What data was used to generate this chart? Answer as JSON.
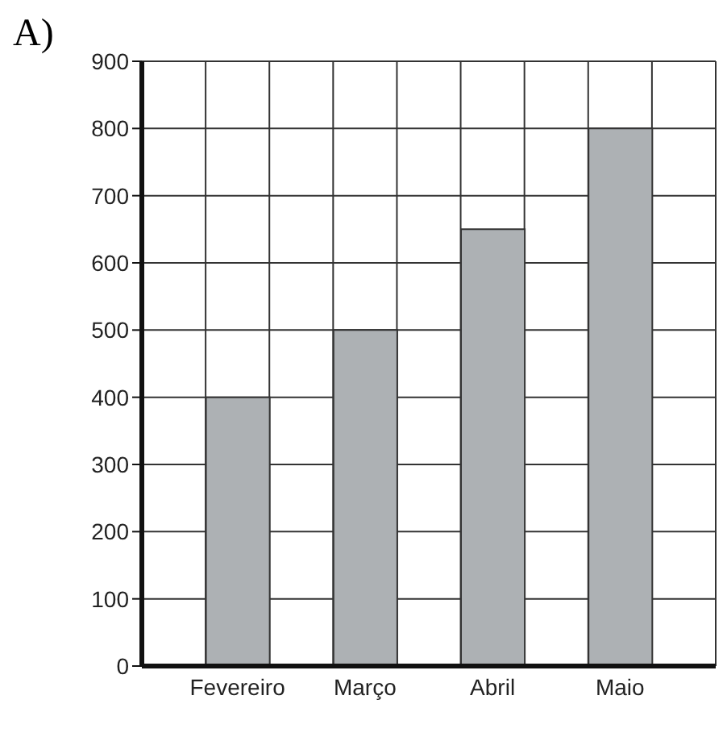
{
  "chart_data": {
    "type": "bar",
    "title": "A)",
    "categories": [
      "Fevereiro",
      "Março",
      "Abril",
      "Maio"
    ],
    "values": [
      400,
      500,
      650,
      800
    ],
    "color": "#adb1b4",
    "ylim": [
      0,
      900
    ],
    "yticks": [
      0,
      100,
      200,
      300,
      400,
      500,
      600,
      700,
      800,
      900
    ],
    "grid": true
  }
}
